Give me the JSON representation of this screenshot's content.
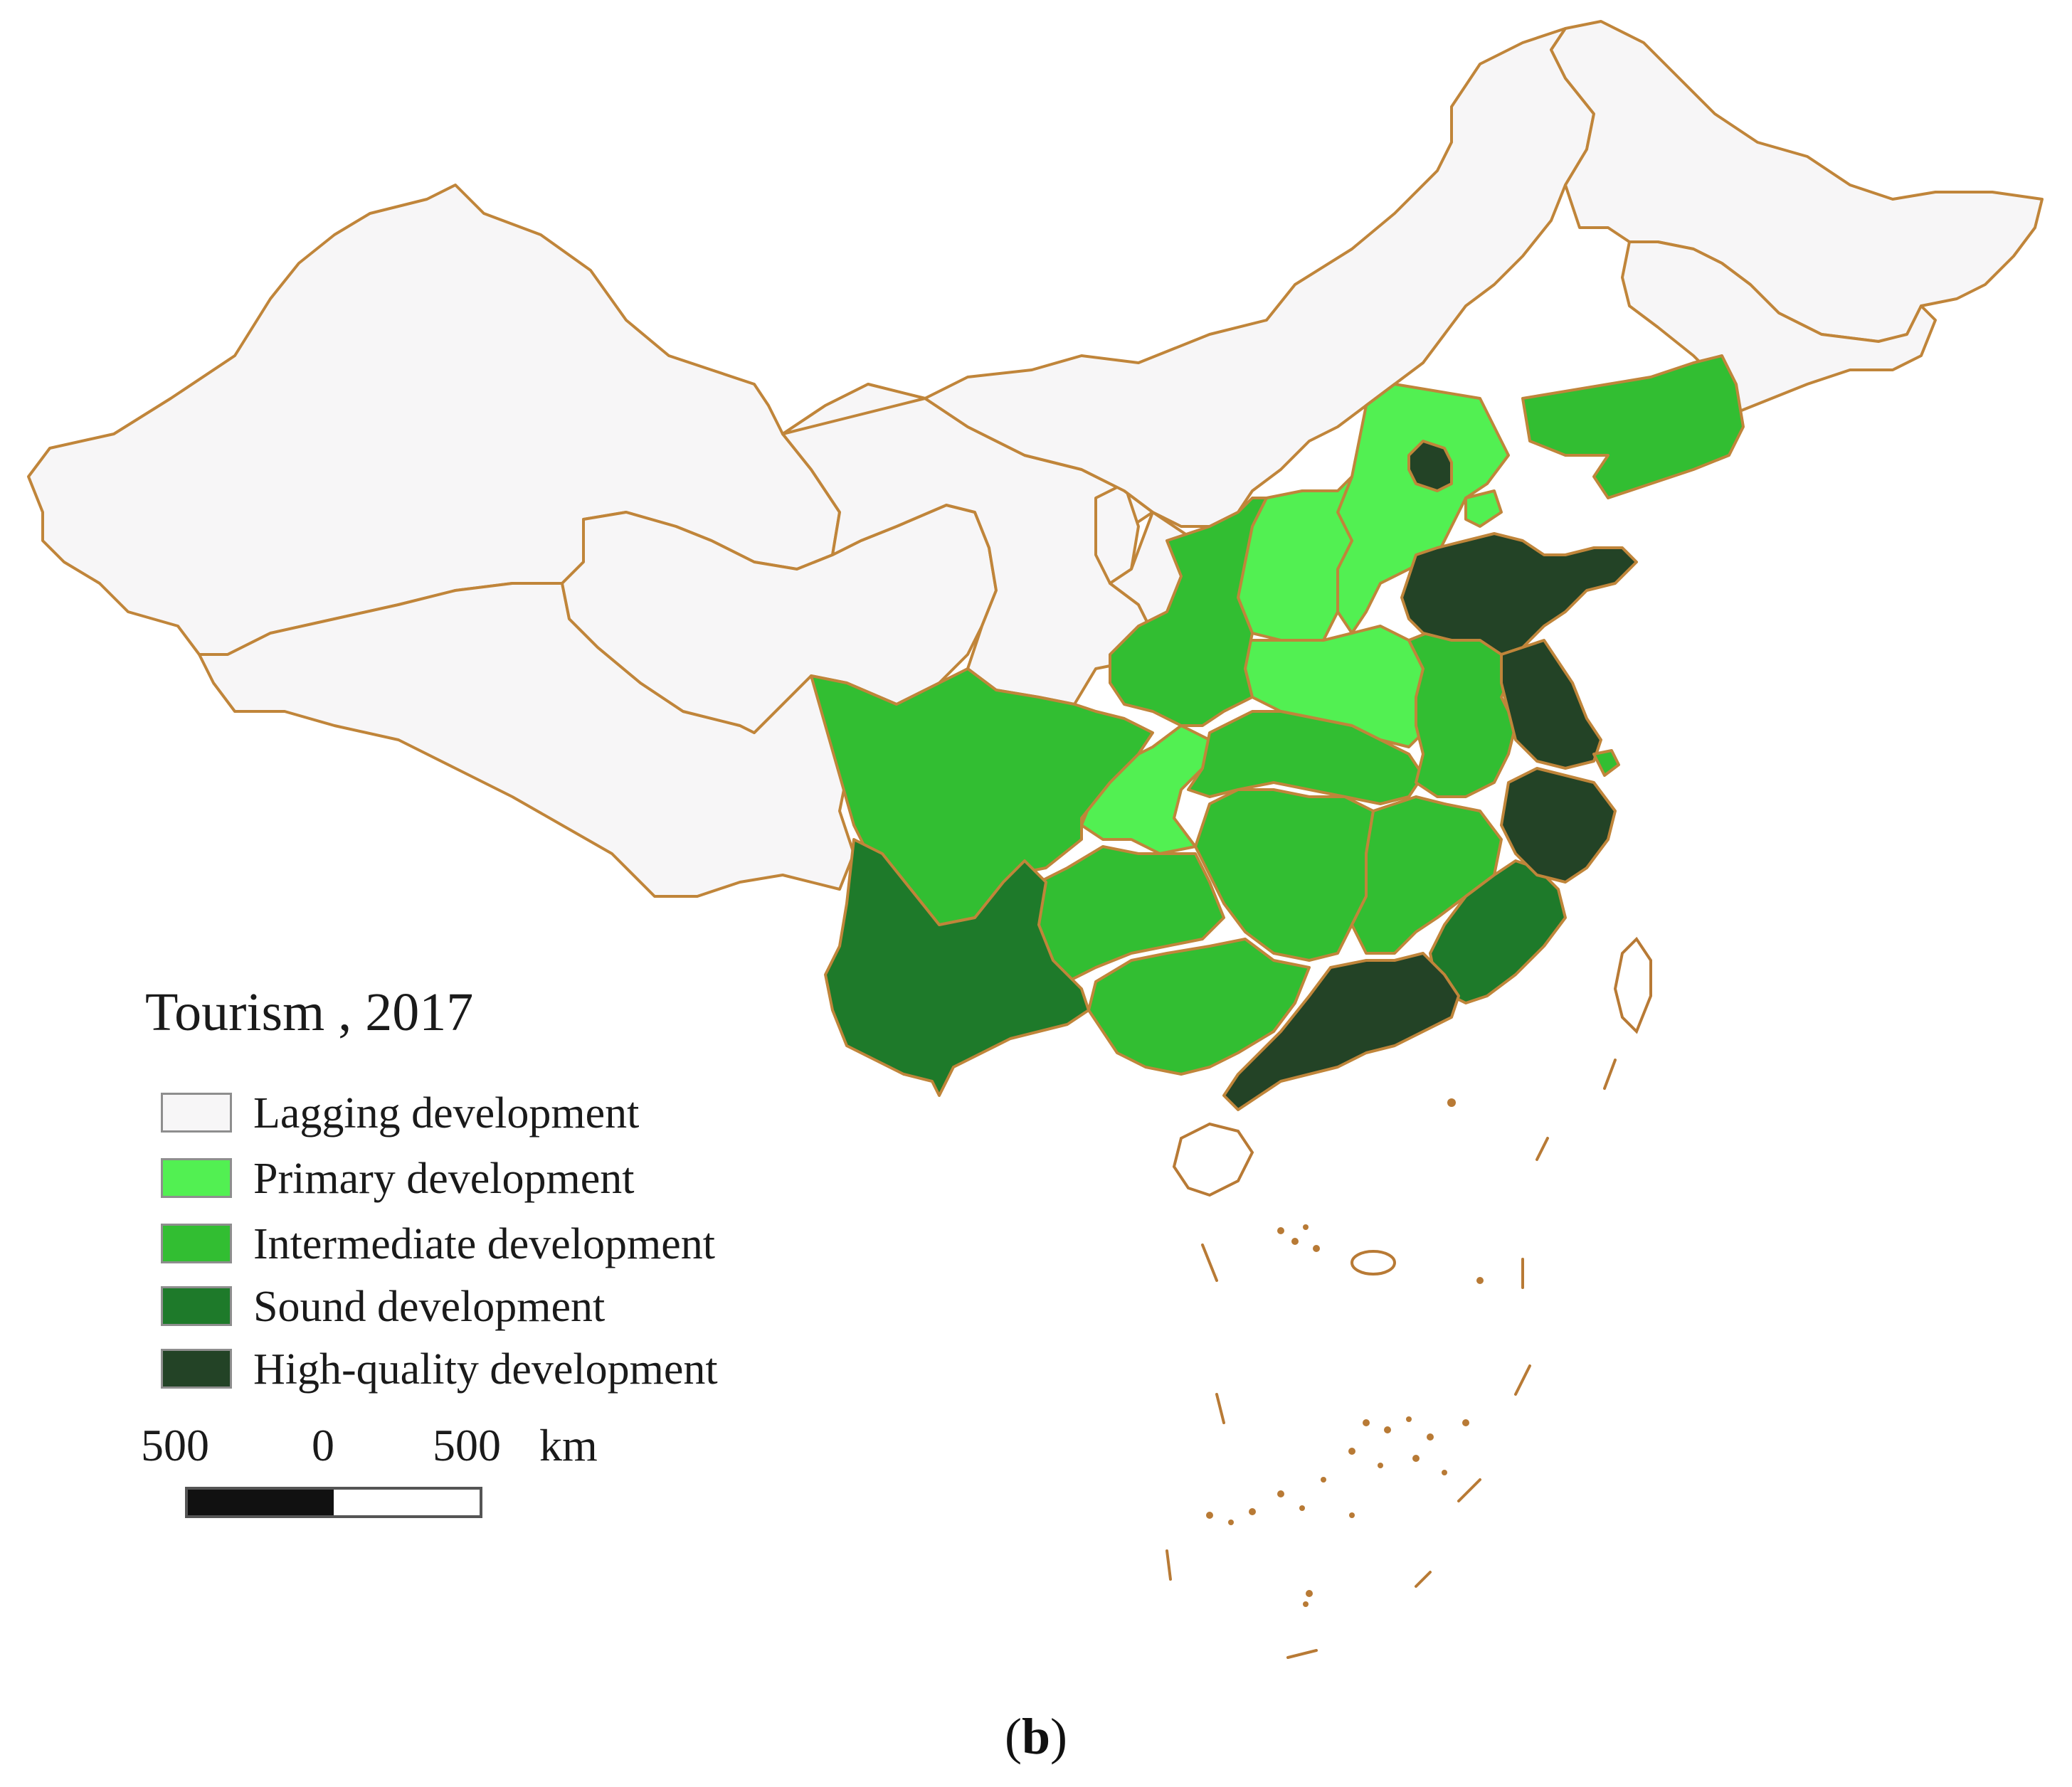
{
  "legend": {
    "title": "Tourism , 2017",
    "items": [
      {
        "label": "Lagging development",
        "color": "#f7f6f7"
      },
      {
        "label": "Primary development",
        "color": "#52f052"
      },
      {
        "label": "Intermediate development",
        "color": "#32be32"
      },
      {
        "label": "Sound development",
        "color": "#1e7a2a"
      },
      {
        "label": "High-quality development",
        "color": "#234326"
      }
    ]
  },
  "scale": {
    "left": "500",
    "center": "0",
    "right": "500",
    "unit": "km"
  },
  "caption": {
    "open": "(",
    "letter": "b",
    "close": ")"
  },
  "colors": {
    "border": "#c0853a"
  }
}
